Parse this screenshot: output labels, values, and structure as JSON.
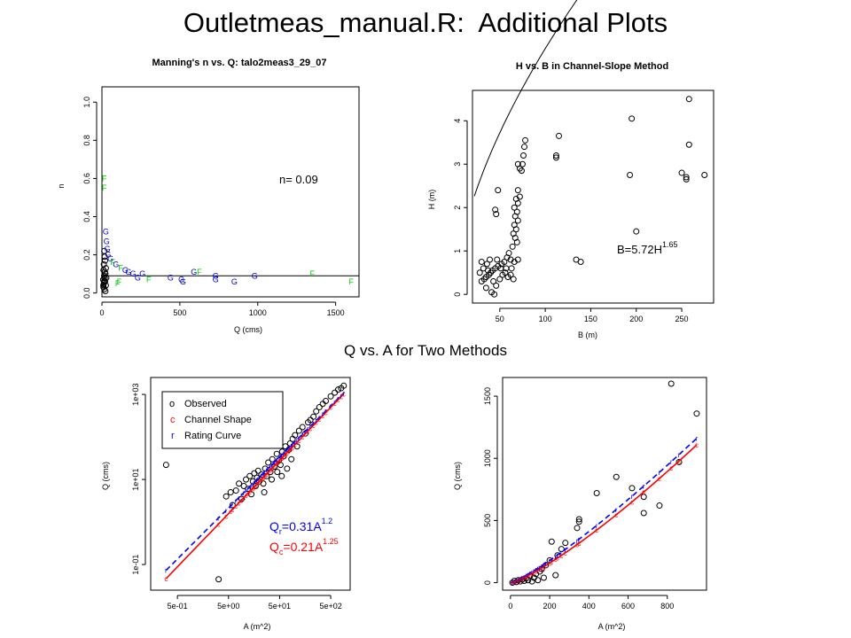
{
  "slide": {
    "title": "Outletmeas_manual.R:  Additional Plots",
    "caption": "Q vs. A for Two Methods"
  },
  "colors": {
    "observed": "#000000",
    "channel_shape": "#ff0000",
    "rating_curve": "#0000ff",
    "F_points": "#00cc00",
    "G_points": "#0000cc"
  },
  "chart_data": [
    {
      "type": "scatter",
      "title": "Manning's n vs. Q: talo2meas3_29_07",
      "xlabel": "Q (cms)",
      "ylabel": "n",
      "xlim": [
        0,
        1650
      ],
      "ylim": [
        -0.02,
        1.08
      ],
      "xticks": [
        "0",
        "500",
        "1000",
        "1500"
      ],
      "xtick_values": [
        0,
        500,
        1000,
        1500
      ],
      "yticks": [
        "0.0",
        "0.2",
        "0.4",
        "0.6",
        "0.8",
        "1.0"
      ],
      "ytick_values": [
        0,
        0.2,
        0.4,
        0.6,
        0.8,
        1.0
      ],
      "hline": 0.09,
      "annotation": "n= 0.09",
      "labeled_points": [
        {
          "x": 15,
          "y": 0.6,
          "label": "F",
          "group": "F"
        },
        {
          "x": 15,
          "y": 0.55,
          "label": "F",
          "group": "F"
        },
        {
          "x": 25,
          "y": 0.32,
          "label": "G",
          "group": "G"
        },
        {
          "x": 30,
          "y": 0.27,
          "label": "G",
          "group": "G"
        },
        {
          "x": 35,
          "y": 0.23,
          "label": "G",
          "group": "G"
        },
        {
          "x": 40,
          "y": 0.2,
          "label": "G",
          "group": "G"
        },
        {
          "x": 55,
          "y": 0.18,
          "label": "G",
          "group": "G"
        },
        {
          "x": 70,
          "y": 0.16,
          "label": "F",
          "group": "F"
        },
        {
          "x": 90,
          "y": 0.15,
          "label": "G",
          "group": "G"
        },
        {
          "x": 120,
          "y": 0.13,
          "label": "F",
          "group": "F"
        },
        {
          "x": 150,
          "y": 0.12,
          "label": "G",
          "group": "G"
        },
        {
          "x": 170,
          "y": 0.11,
          "label": "G",
          "group": "G"
        },
        {
          "x": 200,
          "y": 0.1,
          "label": "G",
          "group": "G"
        },
        {
          "x": 230,
          "y": 0.08,
          "label": "G",
          "group": "G"
        },
        {
          "x": 260,
          "y": 0.1,
          "label": "G",
          "group": "G"
        },
        {
          "x": 300,
          "y": 0.07,
          "label": "F",
          "group": "F"
        },
        {
          "x": 110,
          "y": 0.06,
          "label": "F",
          "group": "F"
        },
        {
          "x": 100,
          "y": 0.05,
          "label": "F",
          "group": "F"
        },
        {
          "x": 440,
          "y": 0.08,
          "label": "G",
          "group": "G"
        },
        {
          "x": 510,
          "y": 0.07,
          "label": "G",
          "group": "G"
        },
        {
          "x": 520,
          "y": 0.06,
          "label": "G",
          "group": "G"
        },
        {
          "x": 590,
          "y": 0.11,
          "label": "G",
          "group": "G"
        },
        {
          "x": 625,
          "y": 0.11,
          "label": "F",
          "group": "F"
        },
        {
          "x": 730,
          "y": 0.09,
          "label": "G",
          "group": "G"
        },
        {
          "x": 730,
          "y": 0.07,
          "label": "G",
          "group": "G"
        },
        {
          "x": 850,
          "y": 0.06,
          "label": "G",
          "group": "G"
        },
        {
          "x": 980,
          "y": 0.09,
          "label": "G",
          "group": "G"
        },
        {
          "x": 1350,
          "y": 0.1,
          "label": "F",
          "group": "F"
        },
        {
          "x": 1600,
          "y": 0.06,
          "label": "F",
          "group": "F"
        }
      ],
      "circles": [
        {
          "x": 15,
          "y": 0.22
        },
        {
          "x": 18,
          "y": 0.19
        },
        {
          "x": 20,
          "y": 0.17
        },
        {
          "x": 12,
          "y": 0.15
        },
        {
          "x": 25,
          "y": 0.13
        },
        {
          "x": 10,
          "y": 0.12
        },
        {
          "x": 22,
          "y": 0.1
        },
        {
          "x": 14,
          "y": 0.09
        },
        {
          "x": 18,
          "y": 0.08
        },
        {
          "x": 8,
          "y": 0.07
        },
        {
          "x": 20,
          "y": 0.06
        },
        {
          "x": 12,
          "y": 0.05
        },
        {
          "x": 25,
          "y": 0.04
        },
        {
          "x": 10,
          "y": 0.03
        },
        {
          "x": 16,
          "y": 0.02
        },
        {
          "x": 22,
          "y": 0.01
        },
        {
          "x": 14,
          "y": 0.06
        },
        {
          "x": 9,
          "y": 0.04
        },
        {
          "x": 19,
          "y": 0.11
        },
        {
          "x": 28,
          "y": 0.08
        }
      ]
    },
    {
      "type": "scatter",
      "title": "H vs. B in Channel-Slope Method",
      "xlabel": "B (m)",
      "ylabel": "H (m)",
      "xlim": [
        20,
        285
      ],
      "ylim": [
        -0.2,
        4.7
      ],
      "xticks": [
        "50",
        "100",
        "150",
        "200",
        "250"
      ],
      "xtick_values": [
        50,
        100,
        150,
        200,
        250
      ],
      "yticks": [
        "0",
        "1",
        "2",
        "3",
        "4"
      ],
      "ytick_values": [
        0,
        1,
        2,
        3,
        4
      ],
      "fit": {
        "label": "B=5.72H",
        "exponent": "1.65",
        "coef": 5.72,
        "power": 1.65
      },
      "points": [
        {
          "x": 258,
          "y": 4.5
        },
        {
          "x": 195,
          "y": 4.05
        },
        {
          "x": 258,
          "y": 3.45
        },
        {
          "x": 275,
          "y": 2.75
        },
        {
          "x": 250,
          "y": 2.8
        },
        {
          "x": 255,
          "y": 2.7
        },
        {
          "x": 255,
          "y": 2.65
        },
        {
          "x": 193,
          "y": 2.75
        },
        {
          "x": 200,
          "y": 1.45
        },
        {
          "x": 115,
          "y": 3.65
        },
        {
          "x": 112,
          "y": 3.2
        },
        {
          "x": 112,
          "y": 3.15
        },
        {
          "x": 78,
          "y": 3.55
        },
        {
          "x": 77,
          "y": 3.4
        },
        {
          "x": 76,
          "y": 3.2
        },
        {
          "x": 75,
          "y": 3.0
        },
        {
          "x": 72,
          "y": 2.9
        },
        {
          "x": 70,
          "y": 3.0
        },
        {
          "x": 74,
          "y": 2.85
        },
        {
          "x": 48,
          "y": 2.4
        },
        {
          "x": 45,
          "y": 1.95
        },
        {
          "x": 46,
          "y": 1.85
        },
        {
          "x": 134,
          "y": 0.8
        },
        {
          "x": 139,
          "y": 0.75
        },
        {
          "x": 70,
          "y": 2.4
        },
        {
          "x": 72,
          "y": 2.25
        },
        {
          "x": 68,
          "y": 2.2
        },
        {
          "x": 70,
          "y": 2.1
        },
        {
          "x": 66,
          "y": 2.0
        },
        {
          "x": 69,
          "y": 1.9
        },
        {
          "x": 67,
          "y": 1.8
        },
        {
          "x": 70,
          "y": 1.7
        },
        {
          "x": 66,
          "y": 1.6
        },
        {
          "x": 68,
          "y": 1.5
        },
        {
          "x": 65,
          "y": 1.4
        },
        {
          "x": 67,
          "y": 1.3
        },
        {
          "x": 69,
          "y": 1.2
        },
        {
          "x": 64,
          "y": 1.1
        },
        {
          "x": 60,
          "y": 0.95
        },
        {
          "x": 58,
          "y": 0.85
        },
        {
          "x": 62,
          "y": 0.8
        },
        {
          "x": 66,
          "y": 0.75
        },
        {
          "x": 70,
          "y": 0.8
        },
        {
          "x": 55,
          "y": 0.75
        },
        {
          "x": 52,
          "y": 0.7
        },
        {
          "x": 48,
          "y": 0.65
        },
        {
          "x": 45,
          "y": 0.6
        },
        {
          "x": 42,
          "y": 0.55
        },
        {
          "x": 40,
          "y": 0.5
        },
        {
          "x": 38,
          "y": 0.45
        },
        {
          "x": 35,
          "y": 0.4
        },
        {
          "x": 33,
          "y": 0.35
        },
        {
          "x": 30,
          "y": 0.3
        },
        {
          "x": 28,
          "y": 0.5
        },
        {
          "x": 32,
          "y": 0.6
        },
        {
          "x": 36,
          "y": 0.7
        },
        {
          "x": 39,
          "y": 0.8
        },
        {
          "x": 43,
          "y": 0.3
        },
        {
          "x": 46,
          "y": 0.2
        },
        {
          "x": 50,
          "y": 0.35
        },
        {
          "x": 53,
          "y": 0.45
        },
        {
          "x": 56,
          "y": 0.5
        },
        {
          "x": 59,
          "y": 0.4
        },
        {
          "x": 62,
          "y": 0.45
        },
        {
          "x": 65,
          "y": 0.35
        },
        {
          "x": 41,
          "y": 0.05
        },
        {
          "x": 44,
          "y": 0.0
        },
        {
          "x": 35,
          "y": 0.15
        },
        {
          "x": 30,
          "y": 0.75
        },
        {
          "x": 37,
          "y": 0.55
        },
        {
          "x": 47,
          "y": 0.8
        },
        {
          "x": 51,
          "y": 0.6
        },
        {
          "x": 57,
          "y": 0.6
        },
        {
          "x": 63,
          "y": 0.6
        }
      ]
    },
    {
      "type": "scatter",
      "title": "",
      "xlabel": "A (m^2)",
      "ylabel": "Q (cms)",
      "log_x": true,
      "log_y": true,
      "xlim": [
        0.15,
        1200
      ],
      "ylim": [
        0.025,
        2500
      ],
      "xticks": [
        "5e-01",
        "5e+00",
        "5e+01",
        "5e+02"
      ],
      "xtick_values": [
        0.5,
        5,
        50,
        500
      ],
      "yticks": [
        "1e-01",
        "1e+01",
        "1e+03"
      ],
      "ytick_values": [
        0.1,
        10,
        1000
      ],
      "legend": {
        "position": "top-left",
        "entries": [
          {
            "symbol": "o",
            "label": "Observed"
          },
          {
            "symbol": "c",
            "label": "Channel Shape"
          },
          {
            "symbol": "r",
            "label": "Rating Curve"
          }
        ]
      },
      "fits": [
        {
          "name": "rating",
          "label": "Q",
          "subscript": "r",
          "rhs": "=0.31A",
          "exponent": "1.2",
          "coef": 0.31,
          "power": 1.2,
          "style": "dashed"
        },
        {
          "name": "channel",
          "label": "Q",
          "subscript": "c",
          "rhs": "=0.21A",
          "exponent": "1.25",
          "coef": 0.21,
          "power": 1.25,
          "style": "solid"
        }
      ],
      "points": [
        {
          "x": 0.3,
          "y": 22
        },
        {
          "x": 3.2,
          "y": 0.045
        },
        {
          "x": 4.5,
          "y": 4
        },
        {
          "x": 5.5,
          "y": 5
        },
        {
          "x": 7,
          "y": 5.5
        },
        {
          "x": 8,
          "y": 8
        },
        {
          "x": 9,
          "y": 3.5
        },
        {
          "x": 10,
          "y": 7
        },
        {
          "x": 11,
          "y": 10
        },
        {
          "x": 12,
          "y": 6
        },
        {
          "x": 13,
          "y": 12
        },
        {
          "x": 14,
          "y": 4.5
        },
        {
          "x": 15,
          "y": 9
        },
        {
          "x": 16,
          "y": 14
        },
        {
          "x": 17,
          "y": 7
        },
        {
          "x": 18,
          "y": 11
        },
        {
          "x": 19,
          "y": 16
        },
        {
          "x": 20,
          "y": 9
        },
        {
          "x": 22,
          "y": 13
        },
        {
          "x": 24,
          "y": 8
        },
        {
          "x": 26,
          "y": 18
        },
        {
          "x": 28,
          "y": 12
        },
        {
          "x": 30,
          "y": 25
        },
        {
          "x": 33,
          "y": 15
        },
        {
          "x": 36,
          "y": 30
        },
        {
          "x": 40,
          "y": 20
        },
        {
          "x": 44,
          "y": 40
        },
        {
          "x": 48,
          "y": 28
        },
        {
          "x": 52,
          "y": 22
        },
        {
          "x": 56,
          "y": 45
        },
        {
          "x": 60,
          "y": 35
        },
        {
          "x": 65,
          "y": 60
        },
        {
          "x": 70,
          "y": 18
        },
        {
          "x": 75,
          "y": 50
        },
        {
          "x": 80,
          "y": 70
        },
        {
          "x": 85,
          "y": 30
        },
        {
          "x": 90,
          "y": 90
        },
        {
          "x": 100,
          "y": 110
        },
        {
          "x": 110,
          "y": 60
        },
        {
          "x": 120,
          "y": 140
        },
        {
          "x": 140,
          "y": 170
        },
        {
          "x": 160,
          "y": 120
        },
        {
          "x": 180,
          "y": 220
        },
        {
          "x": 200,
          "y": 250
        },
        {
          "x": 230,
          "y": 300
        },
        {
          "x": 260,
          "y": 400
        },
        {
          "x": 300,
          "y": 500
        },
        {
          "x": 350,
          "y": 600
        },
        {
          "x": 400,
          "y": 700
        },
        {
          "x": 500,
          "y": 900
        },
        {
          "x": 600,
          "y": 1100
        },
        {
          "x": 700,
          "y": 1300
        },
        {
          "x": 800,
          "y": 1400
        },
        {
          "x": 900,
          "y": 1600
        },
        {
          "x": 6,
          "y": 2.5
        },
        {
          "x": 25,
          "y": 5
        },
        {
          "x": 35,
          "y": 10
        },
        {
          "x": 45,
          "y": 15
        },
        {
          "x": 55,
          "y": 12
        }
      ]
    },
    {
      "type": "scatter",
      "title": "",
      "xlabel": "A (m^2)",
      "ylabel": "Q (cms)",
      "xlim": [
        -40,
        1000
      ],
      "ylim": [
        -60,
        1650
      ],
      "xticks": [
        "0",
        "200",
        "400",
        "600",
        "800"
      ],
      "xtick_values": [
        0,
        200,
        400,
        600,
        800
      ],
      "yticks": [
        "0",
        "500",
        "1000",
        "1500"
      ],
      "ytick_values": [
        0,
        500,
        1000,
        1500
      ],
      "fits": [
        {
          "name": "rating",
          "coef": 0.31,
          "power": 1.2,
          "style": "dashed"
        },
        {
          "name": "channel",
          "coef": 0.21,
          "power": 1.25,
          "style": "solid"
        }
      ],
      "points": [
        {
          "x": 820,
          "y": 1600
        },
        {
          "x": 950,
          "y": 1360
        },
        {
          "x": 860,
          "y": 970
        },
        {
          "x": 540,
          "y": 850
        },
        {
          "x": 440,
          "y": 720
        },
        {
          "x": 680,
          "y": 690
        },
        {
          "x": 760,
          "y": 620
        },
        {
          "x": 680,
          "y": 560
        },
        {
          "x": 620,
          "y": 760
        },
        {
          "x": 350,
          "y": 510
        },
        {
          "x": 350,
          "y": 490
        },
        {
          "x": 340,
          "y": 440
        },
        {
          "x": 280,
          "y": 320
        },
        {
          "x": 260,
          "y": 270
        },
        {
          "x": 240,
          "y": 220
        },
        {
          "x": 210,
          "y": 330
        },
        {
          "x": 200,
          "y": 180
        },
        {
          "x": 180,
          "y": 140
        },
        {
          "x": 160,
          "y": 110
        },
        {
          "x": 150,
          "y": 90
        },
        {
          "x": 130,
          "y": 70
        },
        {
          "x": 120,
          "y": 40
        },
        {
          "x": 100,
          "y": 55
        },
        {
          "x": 90,
          "y": 20
        },
        {
          "x": 80,
          "y": 35
        },
        {
          "x": 70,
          "y": 15
        },
        {
          "x": 60,
          "y": 25
        },
        {
          "x": 50,
          "y": 10
        },
        {
          "x": 40,
          "y": 20
        },
        {
          "x": 30,
          "y": 5
        },
        {
          "x": 20,
          "y": 15
        },
        {
          "x": 10,
          "y": 0
        },
        {
          "x": 140,
          "y": 20
        },
        {
          "x": 170,
          "y": 40
        },
        {
          "x": 110,
          "y": 10
        },
        {
          "x": 230,
          "y": 60
        }
      ]
    }
  ]
}
